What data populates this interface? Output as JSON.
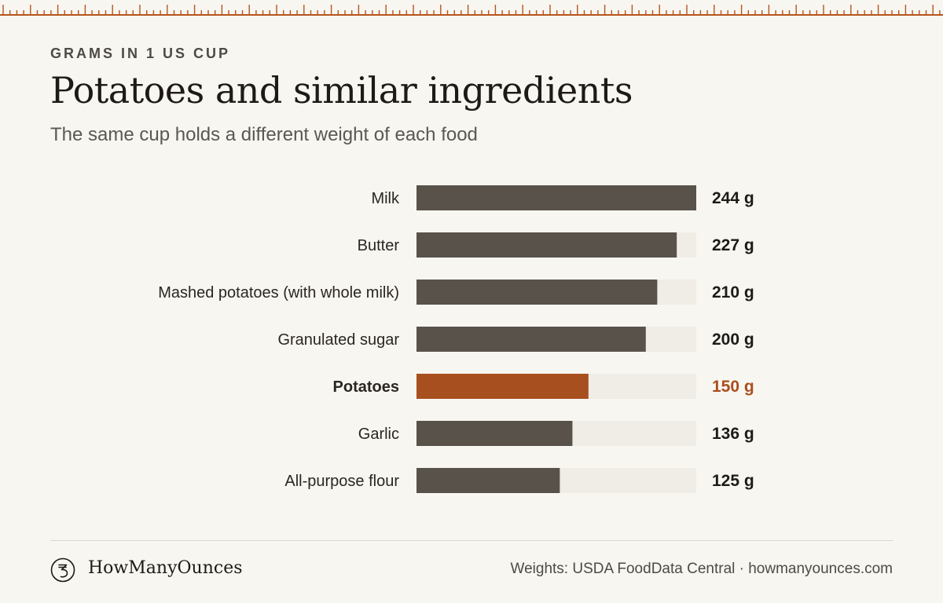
{
  "header": {
    "eyebrow": "GRAMS IN 1 US CUP",
    "title": "Potatoes and similar ingredients",
    "subtitle": "The same cup holds a different weight of each food"
  },
  "chart_data": {
    "type": "bar",
    "orientation": "horizontal",
    "categories": [
      "Milk",
      "Butter",
      "Mashed potatoes (with whole milk)",
      "Granulated sugar",
      "Potatoes",
      "Garlic",
      "All-purpose flour"
    ],
    "values": [
      244,
      227,
      210,
      200,
      150,
      136,
      125
    ],
    "value_labels": [
      "244 g",
      "227 g",
      "210 g",
      "200 g",
      "150 g",
      "136 g",
      "125 g"
    ],
    "unit": "g",
    "xlim": [
      0,
      244
    ],
    "highlight": "Potatoes",
    "grid": false,
    "legend": "none"
  },
  "colors": {
    "bar": "#58524b",
    "highlight": "#a84f1f",
    "track": "#f0ede6",
    "ruler": "#b5561f"
  },
  "footer": {
    "brand_name": "HowManyOunces",
    "logo_icon": "ounce-symbol-icon",
    "source": "Weights: USDA FoodData Central · howmanyounces.com"
  }
}
